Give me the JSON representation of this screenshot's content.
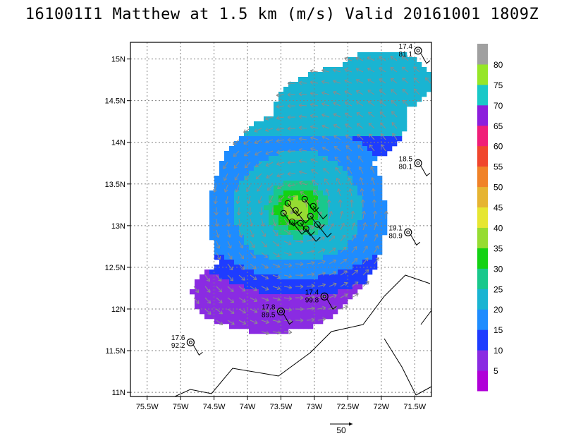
{
  "title": "161001I1 Matthew at 1.5 km (m/s) Valid 20161001 1809Z",
  "map": {
    "x_axis_ticks": [
      "75.5W",
      "75W",
      "74.5W",
      "74W",
      "73.5W",
      "73W",
      "72.5W",
      "72W",
      "71.5W"
    ],
    "x_tick_values": [
      -75.5,
      -75,
      -74.5,
      -74,
      -73.5,
      -73,
      -72.5,
      -72,
      -71.5
    ],
    "y_axis_ticks": [
      "11N",
      "11.5N",
      "12N",
      "12.5N",
      "13N",
      "13.5N",
      "14N",
      "14.5N",
      "15N"
    ],
    "y_tick_values": [
      11,
      11.5,
      12,
      12.5,
      13,
      13.5,
      14,
      14.5,
      15
    ],
    "lon_range": [
      -75.75,
      -71.25
    ],
    "lat_range": [
      10.95,
      15.2
    ],
    "grid": "dotted",
    "storm_center": {
      "lon": -73.25,
      "lat": 13.2
    }
  },
  "colorbar": {
    "labels": [
      "5",
      "10",
      "15",
      "20",
      "25",
      "30",
      "35",
      "40",
      "45",
      "50",
      "55",
      "60",
      "65",
      "70",
      "75",
      "80"
    ],
    "colors": [
      "#b000d8",
      "#8a2be2",
      "#1e3cff",
      "#1e8cff",
      "#19b4d2",
      "#19c88c",
      "#14d214",
      "#96dc32",
      "#e6e632",
      "#e6b432",
      "#f08228",
      "#f0462d",
      "#f01e78",
      "#8c1edc",
      "#19c8c8",
      "#96e628",
      "#a0a0a0"
    ]
  },
  "observations": [
    {
      "lon": -71.45,
      "lat": 15.1,
      "label1": "17.4",
      "label2": "81.1"
    },
    {
      "lon": -71.45,
      "lat": 13.75,
      "label1": "18.5",
      "label2": "80.1"
    },
    {
      "lon": -71.6,
      "lat": 12.92,
      "label1": "19.1",
      "label2": "80.9"
    },
    {
      "lon": -72.85,
      "lat": 12.15,
      "label1": "17.4",
      "label2": "99.8"
    },
    {
      "lon": -73.5,
      "lat": 11.97,
      "label1": "17.8",
      "label2": "89.5"
    },
    {
      "lon": -74.85,
      "lat": 11.6,
      "label1": "17.6",
      "label2": "92.2"
    }
  ],
  "legend_vector": {
    "label": "50"
  }
}
